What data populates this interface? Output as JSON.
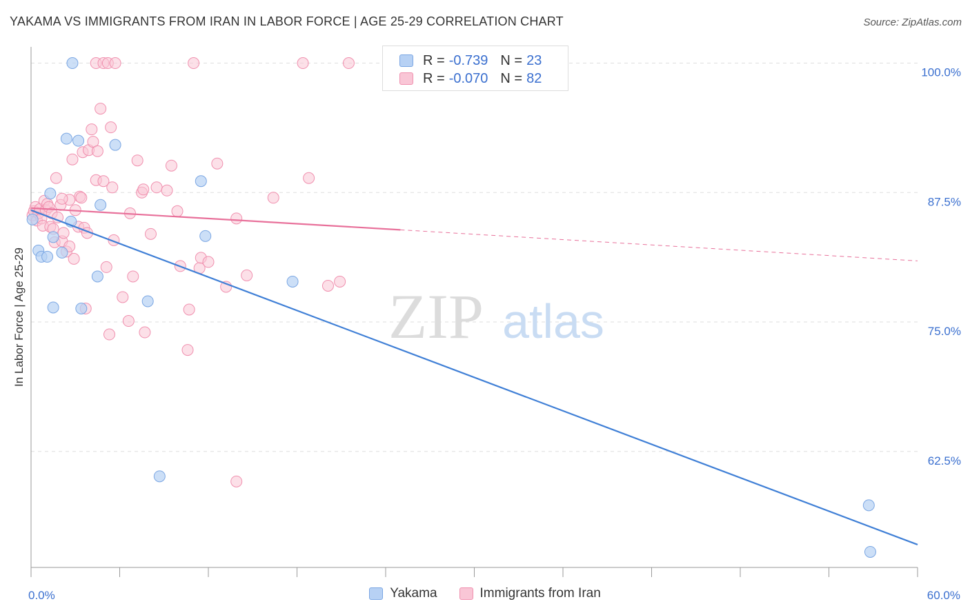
{
  "title": "YAKAMA VS IMMIGRANTS FROM IRAN IN LABOR FORCE | AGE 25-29 CORRELATION CHART",
  "source": "Source: ZipAtlas.com",
  "watermark": {
    "zip": "ZIP",
    "atlas": "atlas"
  },
  "colors": {
    "yakama_fill": "#b7d1f4",
    "yakama_stroke": "#7aa6e3",
    "yakama_line": "#3f7fd6",
    "iran_fill": "#f9c6d6",
    "iran_stroke": "#f08fae",
    "iran_line": "#e8709a",
    "tick_label": "#3a6fcf",
    "grid": "#dddddd"
  },
  "stats": [
    {
      "r_label": "R =",
      "r_value": "-0.739",
      "n_label": "N =",
      "n_value": "23"
    },
    {
      "r_label": "R =",
      "r_value": "-0.070",
      "n_label": "N =",
      "n_value": "82"
    }
  ],
  "legend": [
    "Yakama",
    "Immigrants from Iran"
  ],
  "chart_data": {
    "type": "scatter",
    "title": "YAKAMA VS IMMIGRANTS FROM IRAN IN LABOR FORCE | AGE 25-29 CORRELATION CHART",
    "xlabel": "",
    "ylabel": "In Labor Force | Age 25-29",
    "xlim": [
      0,
      60
    ],
    "ylim": [
      51.3,
      101.3
    ],
    "x_tick_labels": [
      "0.0%",
      "60.0%"
    ],
    "y_ticks": [
      100,
      87.5,
      75,
      62.5
    ],
    "y_tick_labels": [
      "100.0%",
      "87.5%",
      "75.0%",
      "62.5%"
    ],
    "grid": true,
    "legend_position": "bottom",
    "series": [
      {
        "name": "Yakama",
        "points": [
          [
            0.1,
            84.9
          ],
          [
            0.5,
            81.9
          ],
          [
            0.7,
            81.3
          ],
          [
            1.1,
            81.3
          ],
          [
            1.3,
            87.4
          ],
          [
            1.5,
            76.4
          ],
          [
            1.5,
            83.2
          ],
          [
            2.1,
            81.7
          ],
          [
            2.4,
            92.7
          ],
          [
            2.7,
            84.7
          ],
          [
            2.8,
            100
          ],
          [
            3.2,
            92.5
          ],
          [
            3.4,
            76.3
          ],
          [
            4.5,
            79.4
          ],
          [
            4.7,
            86.3
          ],
          [
            5.7,
            92.1
          ],
          [
            7.9,
            77.0
          ],
          [
            8.7,
            60.1
          ],
          [
            11.5,
            88.6
          ],
          [
            11.8,
            83.3
          ],
          [
            17.7,
            78.9
          ],
          [
            56.7,
            57.3
          ],
          [
            56.8,
            52.8
          ]
        ],
        "trend": [
          [
            0,
            85.8
          ],
          [
            60,
            53.5
          ]
        ]
      },
      {
        "name": "Immigrants from Iran",
        "points": [
          [
            0.1,
            85.3
          ],
          [
            0.2,
            85.7
          ],
          [
            0.3,
            86.1
          ],
          [
            0.4,
            84.8
          ],
          [
            0.5,
            85.5
          ],
          [
            0.6,
            85.9
          ],
          [
            0.7,
            85.0
          ],
          [
            0.8,
            84.3
          ],
          [
            0.9,
            86.7
          ],
          [
            1.0,
            85.8
          ],
          [
            1.1,
            86.4
          ],
          [
            1.2,
            86.1
          ],
          [
            1.3,
            84.2
          ],
          [
            1.4,
            85.5
          ],
          [
            1.5,
            84.0
          ],
          [
            1.6,
            82.7
          ],
          [
            1.7,
            88.9
          ],
          [
            1.8,
            85.1
          ],
          [
            2.0,
            86.3
          ],
          [
            2.1,
            82.8
          ],
          [
            2.2,
            83.6
          ],
          [
            2.4,
            81.8
          ],
          [
            2.6,
            86.8
          ],
          [
            2.6,
            82.3
          ],
          [
            2.8,
            90.7
          ],
          [
            2.9,
            81.1
          ],
          [
            3.0,
            85.8
          ],
          [
            3.2,
            84.2
          ],
          [
            3.3,
            87.1
          ],
          [
            3.4,
            87.0
          ],
          [
            3.5,
            91.4
          ],
          [
            3.6,
            84.1
          ],
          [
            3.7,
            76.3
          ],
          [
            3.8,
            83.6
          ],
          [
            3.9,
            91.6
          ],
          [
            4.1,
            93.6
          ],
          [
            4.2,
            92.4
          ],
          [
            4.4,
            88.7
          ],
          [
            4.4,
            100
          ],
          [
            4.5,
            91.5
          ],
          [
            4.7,
            95.6
          ],
          [
            4.9,
            88.6
          ],
          [
            4.9,
            100
          ],
          [
            5.1,
            80.3
          ],
          [
            5.2,
            100
          ],
          [
            5.3,
            73.8
          ],
          [
            5.4,
            93.8
          ],
          [
            5.5,
            88.0
          ],
          [
            5.6,
            82.9
          ],
          [
            5.7,
            100
          ],
          [
            6.2,
            77.4
          ],
          [
            6.6,
            75.1
          ],
          [
            6.7,
            85.5
          ],
          [
            6.9,
            79.4
          ],
          [
            7.2,
            90.6
          ],
          [
            7.5,
            87.5
          ],
          [
            7.6,
            87.8
          ],
          [
            7.7,
            74.0
          ],
          [
            8.1,
            83.5
          ],
          [
            8.5,
            88.0
          ],
          [
            9.2,
            87.7
          ],
          [
            9.5,
            90.1
          ],
          [
            9.9,
            85.7
          ],
          [
            10.1,
            80.4
          ],
          [
            10.6,
            72.3
          ],
          [
            10.7,
            76.2
          ],
          [
            11.0,
            100
          ],
          [
            11.4,
            80.2
          ],
          [
            11.5,
            81.2
          ],
          [
            12.0,
            80.8
          ],
          [
            12.6,
            90.3
          ],
          [
            13.2,
            78.4
          ],
          [
            13.9,
            85.0
          ],
          [
            13.9,
            59.6
          ],
          [
            14.6,
            79.5
          ],
          [
            16.4,
            87.0
          ],
          [
            18.4,
            100
          ],
          [
            18.8,
            88.9
          ],
          [
            20.1,
            78.5
          ],
          [
            20.9,
            78.9
          ],
          [
            21.5,
            100
          ],
          [
            2.1,
            86.9
          ]
        ],
        "trend_solid": [
          [
            0,
            86.0
          ],
          [
            25,
            83.9
          ]
        ],
        "trend_dashed": [
          [
            25,
            83.9
          ],
          [
            60,
            80.9
          ]
        ]
      }
    ]
  }
}
